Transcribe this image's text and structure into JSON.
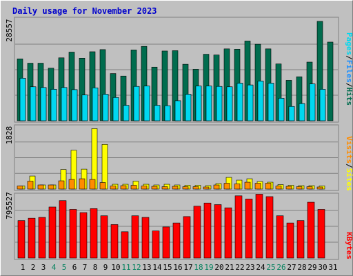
{
  "title": "Daily usage for November 2023",
  "colors": {
    "background": "#c0c0c0",
    "title": "#0000cc",
    "hits": "#006c4e",
    "files": "#1e90ff",
    "pages": "#00d8f0",
    "visits": "#ff8c00",
    "sites": "#ffff00",
    "kbytes": "#ff0000",
    "weekend_day": "#00805c",
    "weekday": "#000000"
  },
  "legend": {
    "hits": "Hits",
    "files": "Files",
    "pages": "Pages",
    "separator": "/",
    "sites": "Sites",
    "visits": "Visits",
    "kbytes": "KBytes"
  },
  "chart_data": [
    {
      "type": "bar",
      "panel": "hits-files-pages",
      "ymax_label": "28557",
      "ylim": [
        0,
        28557
      ],
      "x": [
        1,
        2,
        3,
        4,
        5,
        6,
        7,
        8,
        9,
        10,
        11,
        12,
        13,
        14,
        15,
        16,
        17,
        18,
        19,
        20,
        21,
        22,
        23,
        24,
        25,
        26,
        27,
        28,
        29,
        30,
        31
      ],
      "series": [
        {
          "name": "Hits",
          "values": [
            17300,
            16100,
            16100,
            14700,
            17600,
            19200,
            17500,
            19300,
            19900,
            13200,
            12500,
            19800,
            20800,
            15000,
            19500,
            19600,
            15800,
            14400,
            18600,
            18400,
            20100,
            20000,
            22300,
            21400,
            20100,
            15900,
            11300,
            12300,
            16400,
            27800,
            22000
          ]
        },
        {
          "name": "Files",
          "values": [
            11900,
            9500,
            9300,
            8800,
            9300,
            8700,
            7200,
            9200,
            7400,
            6500,
            4300,
            9600,
            9700,
            4300,
            4200,
            5600,
            7400,
            9700,
            9700,
            9600,
            9500,
            10500,
            10000,
            11100,
            10500,
            6300,
            4000,
            4800,
            10300,
            6700,
            0
          ]
        },
        {
          "name": "Pages",
          "values": [
            11900,
            9500,
            9300,
            8800,
            9300,
            8700,
            7200,
            9200,
            7400,
            6500,
            4300,
            9600,
            9700,
            4300,
            4200,
            5600,
            7400,
            9700,
            9700,
            9600,
            9500,
            10500,
            10000,
            11100,
            10500,
            6300,
            4000,
            4800,
            10300,
            8800,
            0
          ]
        }
      ]
    },
    {
      "type": "bar",
      "panel": "sites-visits",
      "ymax_label": "1828",
      "ylim": [
        0,
        1828
      ],
      "x": [
        1,
        2,
        3,
        4,
        5,
        6,
        7,
        8,
        9,
        10,
        11,
        12,
        13,
        14,
        15,
        16,
        17,
        18,
        19,
        20,
        21,
        22,
        23,
        24,
        25,
        26,
        27,
        28,
        29,
        30,
        31
      ],
      "series": [
        {
          "name": "Sites",
          "values": [
            90,
            380,
            120,
            120,
            570,
            1130,
            580,
            1760,
            1300,
            140,
            140,
            230,
            140,
            120,
            140,
            120,
            110,
            110,
            100,
            160,
            340,
            260,
            300,
            220,
            200,
            130,
            110,
            100,
            100,
            90,
            0
          ]
        },
        {
          "name": "Visits",
          "values": [
            90,
            230,
            120,
            120,
            240,
            280,
            300,
            280,
            190,
            90,
            100,
            110,
            90,
            80,
            70,
            80,
            70,
            70,
            60,
            120,
            170,
            150,
            200,
            170,
            170,
            90,
            80,
            70,
            70,
            60,
            0
          ]
        }
      ]
    },
    {
      "type": "bar",
      "panel": "kbytes",
      "ymax_label": "795527",
      "ylim": [
        0,
        795527
      ],
      "x": [
        1,
        2,
        3,
        4,
        5,
        6,
        7,
        8,
        9,
        10,
        11,
        12,
        13,
        14,
        15,
        16,
        17,
        18,
        19,
        20,
        21,
        22,
        23,
        24,
        25,
        26,
        27,
        28,
        29,
        30,
        31
      ],
      "series": [
        {
          "name": "KBytes",
          "values": [
            470000,
            500000,
            510000,
            640000,
            720000,
            610000,
            570000,
            620000,
            530000,
            420000,
            330000,
            530000,
            510000,
            340000,
            390000,
            440000,
            520000,
            650000,
            690000,
            670000,
            630000,
            780000,
            740000,
            800000,
            770000,
            530000,
            440000,
            470000,
            700000,
            610000,
            0
          ]
        }
      ]
    }
  ],
  "day_labels": [
    "1",
    "2",
    "3",
    "4",
    "5",
    "6",
    "7",
    "8",
    "9",
    "10",
    "11",
    "12",
    "13",
    "14",
    "15",
    "16",
    "17",
    "18",
    "19",
    "20",
    "21",
    "22",
    "23",
    "24",
    "25",
    "26",
    "27",
    "28",
    "29",
    "30",
    "31"
  ],
  "weekend_days": [
    4,
    5,
    11,
    12,
    18,
    19,
    25,
    26
  ]
}
